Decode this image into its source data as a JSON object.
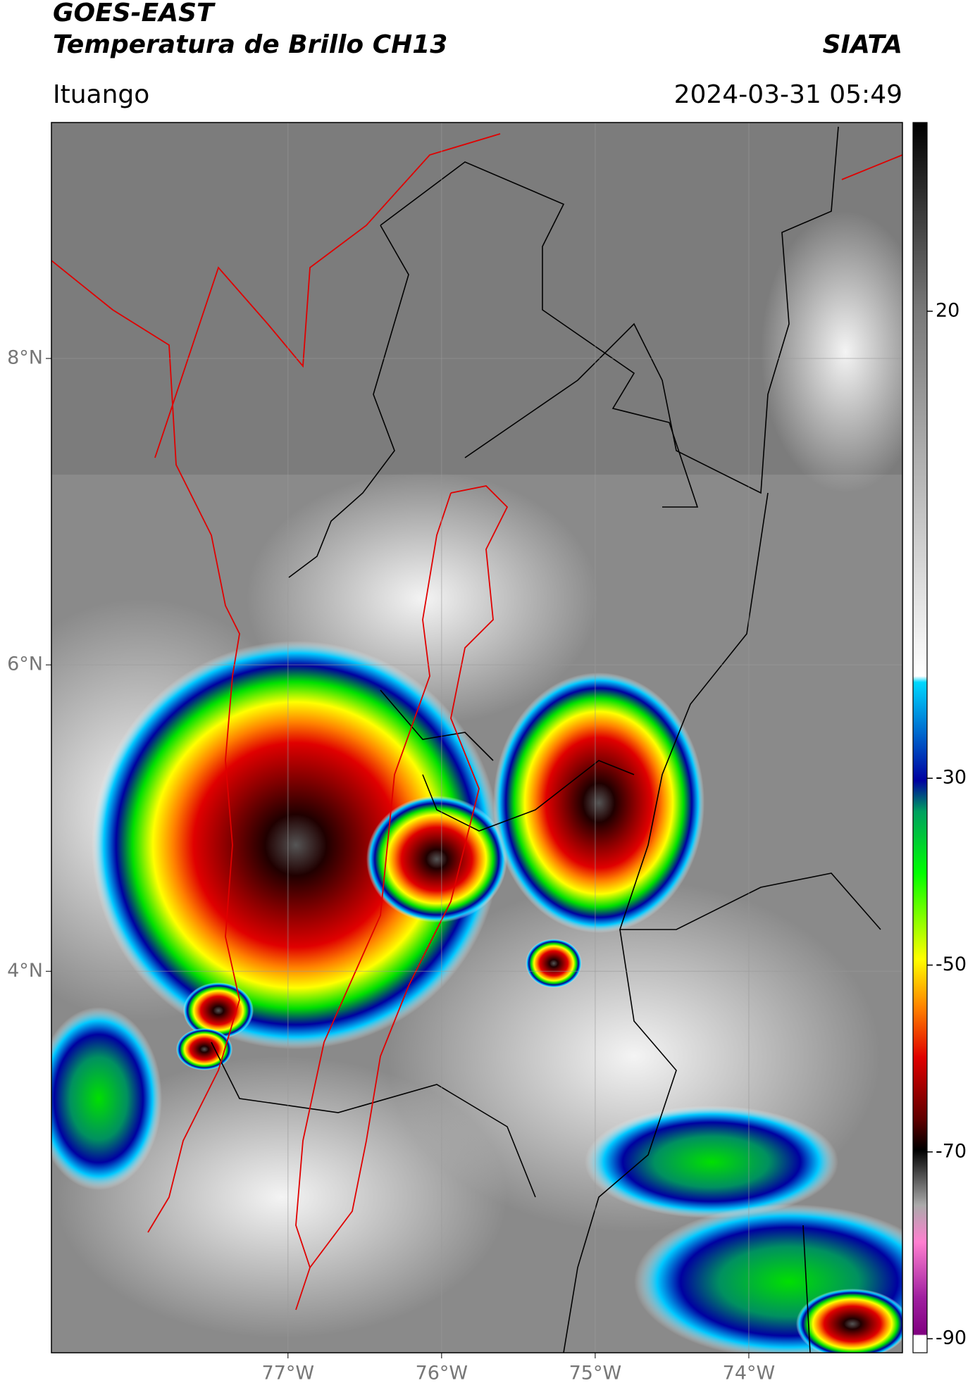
{
  "chart_data": {
    "type": "map",
    "title": "GOES-EAST",
    "subtitle": "Temperatura de Brillo CH13",
    "source": "SIATA",
    "location": "Ituango",
    "date": "2024-03-31 05:49",
    "xlim": [
      -78.54,
      -73.0
    ],
    "ylim": [
      1.51,
      9.54
    ],
    "xticks": [
      {
        "value": -77,
        "label": "77°W"
      },
      {
        "value": -76,
        "label": "76°W"
      },
      {
        "value": -75,
        "label": "75°W"
      },
      {
        "value": -74,
        "label": "74°W"
      }
    ],
    "yticks": [
      {
        "value": 4,
        "label": "4°N"
      },
      {
        "value": 6,
        "label": "6°N"
      },
      {
        "value": 8,
        "label": "8°N"
      }
    ],
    "grid": true,
    "colorbar": {
      "lim": [
        -91.5,
        40.2
      ],
      "ticks": [
        20,
        -30,
        -50,
        -70,
        -90
      ]
    }
  }
}
